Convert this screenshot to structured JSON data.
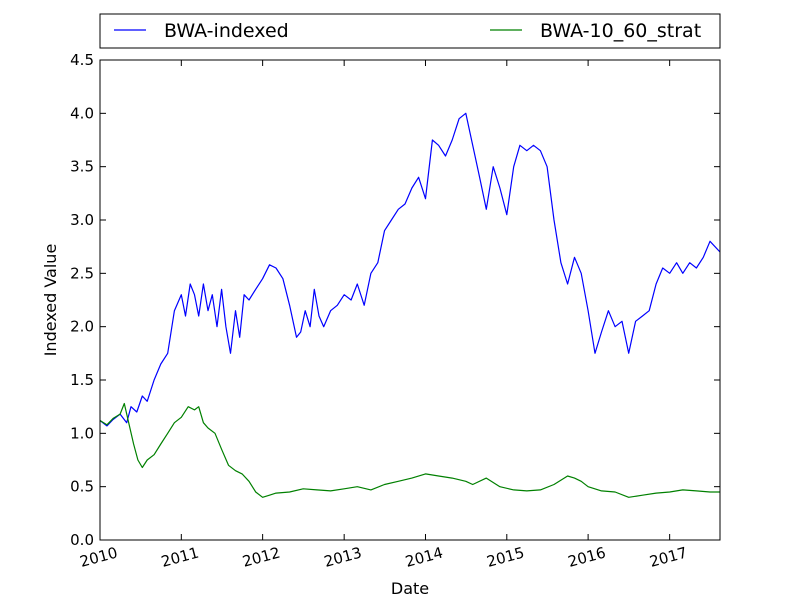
{
  "chart_data": {
    "type": "line",
    "xlabel": "Date",
    "ylabel": "Indexed Value",
    "xlim": [
      "2010-01-01",
      "2017-08-15"
    ],
    "ylim": [
      0.0,
      4.5
    ],
    "yticks": [
      0.0,
      0.5,
      1.0,
      1.5,
      2.0,
      2.5,
      3.0,
      3.5,
      4.0,
      4.5
    ],
    "ytick_labels": [
      "0.0",
      "0.5",
      "1.0",
      "1.5",
      "2.0",
      "2.5",
      "3.0",
      "3.5",
      "4.0",
      "4.5"
    ],
    "xticks": [
      "2010-01-01",
      "2011-01-01",
      "2012-01-01",
      "2013-01-01",
      "2014-01-01",
      "2015-01-01",
      "2016-01-01",
      "2017-01-01"
    ],
    "xtick_labels": [
      "2010",
      "2011",
      "2012",
      "2013",
      "2014",
      "2015",
      "2016",
      "2017"
    ],
    "grid": false,
    "legend_position": "top, above plot (two columns)",
    "series": [
      {
        "name": "BWA-indexed",
        "color": "#0000ff",
        "points": [
          [
            "2010-01-01",
            1.12
          ],
          [
            "2010-02-01",
            1.07
          ],
          [
            "2010-03-01",
            1.13
          ],
          [
            "2010-04-01",
            1.18
          ],
          [
            "2010-05-01",
            1.1
          ],
          [
            "2010-05-20",
            1.25
          ],
          [
            "2010-06-15",
            1.2
          ],
          [
            "2010-07-10",
            1.35
          ],
          [
            "2010-08-01",
            1.3
          ],
          [
            "2010-09-01",
            1.5
          ],
          [
            "2010-10-01",
            1.65
          ],
          [
            "2010-11-01",
            1.75
          ],
          [
            "2010-12-01",
            2.15
          ],
          [
            "2011-01-01",
            2.3
          ],
          [
            "2011-01-20",
            2.1
          ],
          [
            "2011-02-10",
            2.4
          ],
          [
            "2011-03-01",
            2.3
          ],
          [
            "2011-03-20",
            2.1
          ],
          [
            "2011-04-10",
            2.4
          ],
          [
            "2011-05-01",
            2.15
          ],
          [
            "2011-05-20",
            2.3
          ],
          [
            "2011-06-10",
            2.0
          ],
          [
            "2011-07-01",
            2.35
          ],
          [
            "2011-07-20",
            2.0
          ],
          [
            "2011-08-10",
            1.75
          ],
          [
            "2011-09-01",
            2.15
          ],
          [
            "2011-09-20",
            1.9
          ],
          [
            "2011-10-10",
            2.3
          ],
          [
            "2011-11-01",
            2.25
          ],
          [
            "2011-12-01",
            2.35
          ],
          [
            "2012-01-01",
            2.45
          ],
          [
            "2012-02-01",
            2.58
          ],
          [
            "2012-03-01",
            2.55
          ],
          [
            "2012-04-01",
            2.45
          ],
          [
            "2012-05-01",
            2.2
          ],
          [
            "2012-06-01",
            1.9
          ],
          [
            "2012-06-20",
            1.95
          ],
          [
            "2012-07-10",
            2.15
          ],
          [
            "2012-08-01",
            2.0
          ],
          [
            "2012-08-20",
            2.35
          ],
          [
            "2012-09-10",
            2.1
          ],
          [
            "2012-10-01",
            2.0
          ],
          [
            "2012-11-01",
            2.15
          ],
          [
            "2012-12-01",
            2.2
          ],
          [
            "2013-01-01",
            2.3
          ],
          [
            "2013-02-01",
            2.25
          ],
          [
            "2013-03-01",
            2.4
          ],
          [
            "2013-04-01",
            2.2
          ],
          [
            "2013-05-01",
            2.5
          ],
          [
            "2013-06-01",
            2.6
          ],
          [
            "2013-07-01",
            2.9
          ],
          [
            "2013-08-01",
            3.0
          ],
          [
            "2013-09-01",
            3.1
          ],
          [
            "2013-10-01",
            3.15
          ],
          [
            "2013-11-01",
            3.3
          ],
          [
            "2013-12-01",
            3.4
          ],
          [
            "2014-01-01",
            3.2
          ],
          [
            "2014-02-01",
            3.75
          ],
          [
            "2014-03-01",
            3.7
          ],
          [
            "2014-04-01",
            3.6
          ],
          [
            "2014-05-01",
            3.75
          ],
          [
            "2014-06-01",
            3.95
          ],
          [
            "2014-07-01",
            4.0
          ],
          [
            "2014-08-01",
            3.7
          ],
          [
            "2014-09-01",
            3.4
          ],
          [
            "2014-10-01",
            3.1
          ],
          [
            "2014-11-01",
            3.5
          ],
          [
            "2014-12-01",
            3.3
          ],
          [
            "2015-01-01",
            3.05
          ],
          [
            "2015-02-01",
            3.5
          ],
          [
            "2015-03-01",
            3.7
          ],
          [
            "2015-04-01",
            3.65
          ],
          [
            "2015-05-01",
            3.7
          ],
          [
            "2015-06-01",
            3.65
          ],
          [
            "2015-07-01",
            3.5
          ],
          [
            "2015-08-01",
            3.0
          ],
          [
            "2015-09-01",
            2.6
          ],
          [
            "2015-10-01",
            2.4
          ],
          [
            "2015-11-01",
            2.65
          ],
          [
            "2015-12-01",
            2.5
          ],
          [
            "2016-01-01",
            2.15
          ],
          [
            "2016-02-01",
            1.75
          ],
          [
            "2016-03-01",
            1.95
          ],
          [
            "2016-04-01",
            2.15
          ],
          [
            "2016-05-01",
            2.0
          ],
          [
            "2016-06-01",
            2.05
          ],
          [
            "2016-07-01",
            1.75
          ],
          [
            "2016-08-01",
            2.05
          ],
          [
            "2016-09-01",
            2.1
          ],
          [
            "2016-10-01",
            2.15
          ],
          [
            "2016-11-01",
            2.4
          ],
          [
            "2016-12-01",
            2.55
          ],
          [
            "2017-01-01",
            2.5
          ],
          [
            "2017-02-01",
            2.6
          ],
          [
            "2017-03-01",
            2.5
          ],
          [
            "2017-04-01",
            2.6
          ],
          [
            "2017-05-01",
            2.55
          ],
          [
            "2017-06-01",
            2.65
          ],
          [
            "2017-07-01",
            2.8
          ],
          [
            "2017-08-15",
            2.7
          ]
        ]
      },
      {
        "name": "BWA-10_60_strat",
        "color": "#008000",
        "points": [
          [
            "2010-01-01",
            1.12
          ],
          [
            "2010-02-01",
            1.08
          ],
          [
            "2010-03-01",
            1.14
          ],
          [
            "2010-04-01",
            1.18
          ],
          [
            "2010-04-20",
            1.28
          ],
          [
            "2010-05-10",
            1.1
          ],
          [
            "2010-06-01",
            0.9
          ],
          [
            "2010-06-20",
            0.75
          ],
          [
            "2010-07-10",
            0.68
          ],
          [
            "2010-08-01",
            0.75
          ],
          [
            "2010-09-01",
            0.8
          ],
          [
            "2010-10-01",
            0.9
          ],
          [
            "2010-11-01",
            1.0
          ],
          [
            "2010-12-01",
            1.1
          ],
          [
            "2011-01-01",
            1.15
          ],
          [
            "2011-02-01",
            1.25
          ],
          [
            "2011-03-01",
            1.22
          ],
          [
            "2011-03-20",
            1.25
          ],
          [
            "2011-04-10",
            1.1
          ],
          [
            "2011-05-01",
            1.05
          ],
          [
            "2011-06-01",
            1.0
          ],
          [
            "2011-07-01",
            0.85
          ],
          [
            "2011-08-01",
            0.7
          ],
          [
            "2011-09-01",
            0.65
          ],
          [
            "2011-10-01",
            0.62
          ],
          [
            "2011-11-01",
            0.55
          ],
          [
            "2011-12-01",
            0.45
          ],
          [
            "2012-01-01",
            0.4
          ],
          [
            "2012-02-01",
            0.42
          ],
          [
            "2012-03-01",
            0.44
          ],
          [
            "2012-05-01",
            0.45
          ],
          [
            "2012-07-01",
            0.48
          ],
          [
            "2012-09-01",
            0.47
          ],
          [
            "2012-11-01",
            0.46
          ],
          [
            "2013-01-01",
            0.48
          ],
          [
            "2013-03-01",
            0.5
          ],
          [
            "2013-05-01",
            0.47
          ],
          [
            "2013-07-01",
            0.52
          ],
          [
            "2013-09-01",
            0.55
          ],
          [
            "2013-11-01",
            0.58
          ],
          [
            "2014-01-01",
            0.62
          ],
          [
            "2014-03-01",
            0.6
          ],
          [
            "2014-05-01",
            0.58
          ],
          [
            "2014-07-01",
            0.55
          ],
          [
            "2014-08-01",
            0.52
          ],
          [
            "2014-10-01",
            0.58
          ],
          [
            "2014-12-01",
            0.5
          ],
          [
            "2015-02-01",
            0.47
          ],
          [
            "2015-04-01",
            0.46
          ],
          [
            "2015-06-01",
            0.47
          ],
          [
            "2015-08-01",
            0.52
          ],
          [
            "2015-10-01",
            0.6
          ],
          [
            "2015-11-01",
            0.58
          ],
          [
            "2015-12-01",
            0.55
          ],
          [
            "2016-01-01",
            0.5
          ],
          [
            "2016-03-01",
            0.46
          ],
          [
            "2016-05-01",
            0.45
          ],
          [
            "2016-07-01",
            0.4
          ],
          [
            "2016-09-01",
            0.42
          ],
          [
            "2016-11-01",
            0.44
          ],
          [
            "2017-01-01",
            0.45
          ],
          [
            "2017-03-01",
            0.47
          ],
          [
            "2017-05-01",
            0.46
          ],
          [
            "2017-07-01",
            0.45
          ],
          [
            "2017-08-15",
            0.45
          ]
        ]
      }
    ]
  }
}
